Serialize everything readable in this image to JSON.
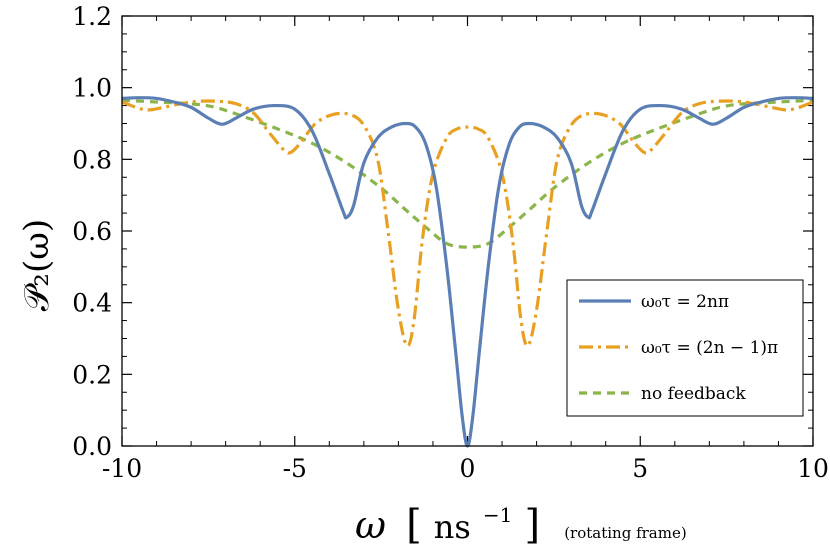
{
  "chart_data": {
    "type": "line",
    "xlabel": {
      "symbol": "ω",
      "unit_open": "[",
      "unit": "ns",
      "unit_exp": "−1",
      "unit_close": "]",
      "note": "(rotating frame)"
    },
    "ylabel": "𝒫₂(ω)",
    "xlim": [
      -10,
      10
    ],
    "ylim": [
      0,
      1.2
    ],
    "x_ticks": [
      -10,
      -5,
      0,
      5,
      10
    ],
    "x_tick_labels": [
      "-10",
      "-5",
      "0",
      "5",
      "10"
    ],
    "y_ticks": [
      0,
      0.2,
      0.4,
      0.6,
      0.8,
      1.0,
      1.2
    ],
    "y_tick_labels": [
      "0.0",
      "0.2",
      "0.4",
      "0.6",
      "0.8",
      "1.0",
      "1.2"
    ],
    "grid": false,
    "legend_position": "bottom-right",
    "series": [
      {
        "name": "ω₀τ = 2nπ",
        "color": "#5b7fb5",
        "dash": "solid",
        "points": [
          [
            -10,
            0.97
          ],
          [
            -9.5,
            0.972
          ],
          [
            -9.0,
            0.97
          ],
          [
            -8.5,
            0.96
          ],
          [
            -8.0,
            0.945
          ],
          [
            -7.5,
            0.915
          ],
          [
            -7.1,
            0.898
          ],
          [
            -6.7,
            0.915
          ],
          [
            -6.2,
            0.94
          ],
          [
            -5.6,
            0.95
          ],
          [
            -5.0,
            0.94
          ],
          [
            -4.5,
            0.88
          ],
          [
            -4.0,
            0.76
          ],
          [
            -3.6,
            0.655
          ],
          [
            -3.5,
            0.638
          ],
          [
            -3.3,
            0.67
          ],
          [
            -3.0,
            0.79
          ],
          [
            -2.6,
            0.86
          ],
          [
            -2.2,
            0.89
          ],
          [
            -1.8,
            0.9
          ],
          [
            -1.5,
            0.89
          ],
          [
            -1.2,
            0.84
          ],
          [
            -0.9,
            0.72
          ],
          [
            -0.6,
            0.5
          ],
          [
            -0.35,
            0.27
          ],
          [
            -0.15,
            0.08
          ],
          [
            0,
            0.0
          ],
          [
            0.15,
            0.08
          ],
          [
            0.35,
            0.27
          ],
          [
            0.6,
            0.5
          ],
          [
            0.9,
            0.72
          ],
          [
            1.2,
            0.84
          ],
          [
            1.5,
            0.89
          ],
          [
            1.8,
            0.9
          ],
          [
            2.2,
            0.89
          ],
          [
            2.6,
            0.86
          ],
          [
            3.0,
            0.79
          ],
          [
            3.3,
            0.67
          ],
          [
            3.5,
            0.638
          ],
          [
            3.6,
            0.655
          ],
          [
            4.0,
            0.76
          ],
          [
            4.5,
            0.88
          ],
          [
            5.0,
            0.94
          ],
          [
            5.6,
            0.95
          ],
          [
            6.2,
            0.94
          ],
          [
            6.7,
            0.915
          ],
          [
            7.1,
            0.898
          ],
          [
            7.5,
            0.915
          ],
          [
            8.0,
            0.945
          ],
          [
            8.5,
            0.96
          ],
          [
            9.0,
            0.97
          ],
          [
            9.5,
            0.972
          ],
          [
            10,
            0.97
          ]
        ]
      },
      {
        "name": "ω₀τ = (2n − 1)π",
        "color": "#e8a023",
        "dash": "dashdot",
        "points": [
          [
            -10,
            0.96
          ],
          [
            -9.5,
            0.942
          ],
          [
            -9.2,
            0.938
          ],
          [
            -8.8,
            0.945
          ],
          [
            -8.3,
            0.955
          ],
          [
            -7.8,
            0.962
          ],
          [
            -7.2,
            0.962
          ],
          [
            -6.7,
            0.955
          ],
          [
            -6.2,
            0.93
          ],
          [
            -5.7,
            0.87
          ],
          [
            -5.3,
            0.825
          ],
          [
            -5.1,
            0.82
          ],
          [
            -4.8,
            0.85
          ],
          [
            -4.4,
            0.9
          ],
          [
            -3.9,
            0.925
          ],
          [
            -3.4,
            0.925
          ],
          [
            -3.0,
            0.895
          ],
          [
            -2.6,
            0.8
          ],
          [
            -2.3,
            0.6
          ],
          [
            -2.0,
            0.38
          ],
          [
            -1.75,
            0.28
          ],
          [
            -1.55,
            0.35
          ],
          [
            -1.3,
            0.58
          ],
          [
            -1.0,
            0.76
          ],
          [
            -0.6,
            0.86
          ],
          [
            -0.3,
            0.885
          ],
          [
            0,
            0.89
          ],
          [
            0.3,
            0.885
          ],
          [
            0.6,
            0.86
          ],
          [
            1.0,
            0.76
          ],
          [
            1.3,
            0.58
          ],
          [
            1.55,
            0.35
          ],
          [
            1.75,
            0.28
          ],
          [
            2.0,
            0.38
          ],
          [
            2.3,
            0.6
          ],
          [
            2.6,
            0.8
          ],
          [
            3.0,
            0.895
          ],
          [
            3.4,
            0.925
          ],
          [
            3.9,
            0.925
          ],
          [
            4.4,
            0.9
          ],
          [
            4.8,
            0.85
          ],
          [
            5.1,
            0.82
          ],
          [
            5.3,
            0.825
          ],
          [
            5.7,
            0.87
          ],
          [
            6.2,
            0.93
          ],
          [
            6.7,
            0.955
          ],
          [
            7.2,
            0.962
          ],
          [
            7.8,
            0.962
          ],
          [
            8.3,
            0.955
          ],
          [
            8.8,
            0.945
          ],
          [
            9.2,
            0.938
          ],
          [
            9.5,
            0.942
          ],
          [
            10,
            0.96
          ]
        ]
      },
      {
        "name": "no feedback",
        "color": "#8ab54a",
        "dash": "dashed",
        "points": [
          [
            -10,
            0.965
          ],
          [
            -9,
            0.96
          ],
          [
            -8,
            0.955
          ],
          [
            -7.3,
            0.945
          ],
          [
            -6.5,
            0.92
          ],
          [
            -5.5,
            0.885
          ],
          [
            -4.5,
            0.845
          ],
          [
            -3.5,
            0.79
          ],
          [
            -2.5,
            0.72
          ],
          [
            -1.8,
            0.66
          ],
          [
            -1.2,
            0.61
          ],
          [
            -0.6,
            0.565
          ],
          [
            0,
            0.555
          ],
          [
            0.6,
            0.565
          ],
          [
            1.2,
            0.61
          ],
          [
            1.8,
            0.66
          ],
          [
            2.5,
            0.72
          ],
          [
            3.5,
            0.79
          ],
          [
            4.5,
            0.845
          ],
          [
            5.5,
            0.885
          ],
          [
            6.5,
            0.92
          ],
          [
            7.3,
            0.945
          ],
          [
            8,
            0.955
          ],
          [
            9,
            0.96
          ],
          [
            10,
            0.965
          ]
        ]
      }
    ]
  }
}
